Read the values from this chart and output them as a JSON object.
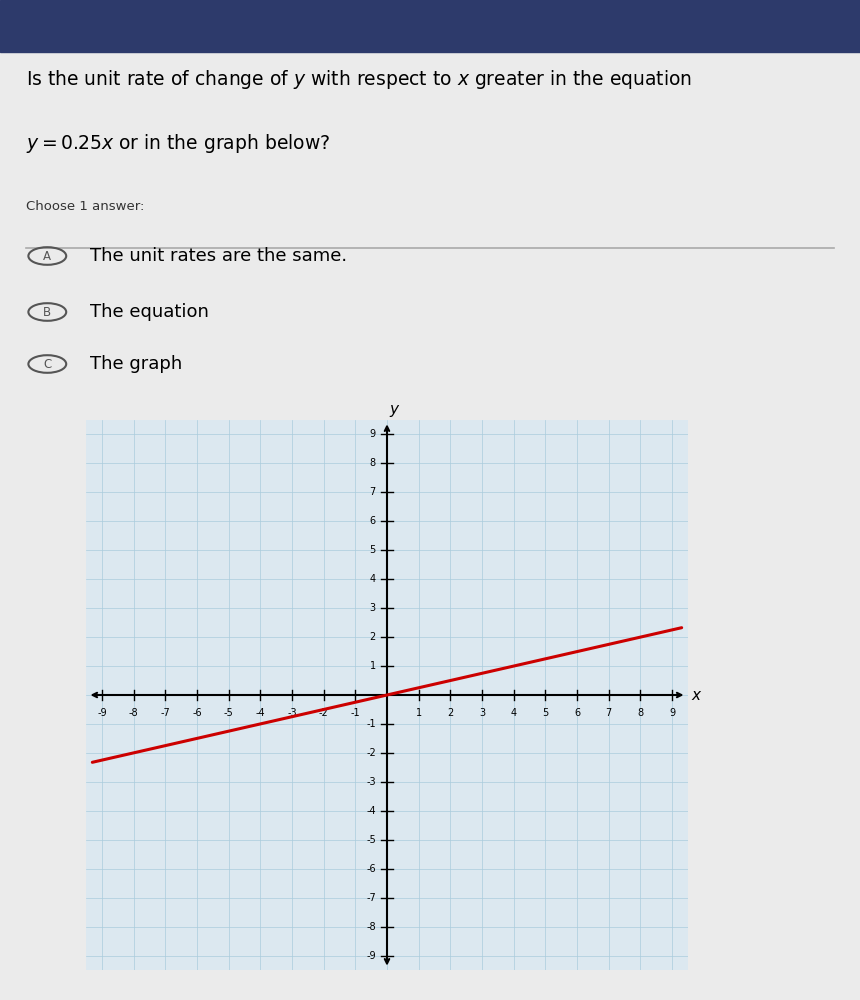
{
  "choose_label": "Choose 1 answer:",
  "options": [
    {
      "letter": "A",
      "text": "The unit rates are the same."
    },
    {
      "letter": "B",
      "text": "The equation"
    },
    {
      "letter": "C",
      "text": "The graph"
    }
  ],
  "background_color": "#ebebeb",
  "graph_bg_color": "#dce8f0",
  "line_color": "#cc0000",
  "line_slope": 0.25,
  "line_intercept": 0,
  "x_range": [
    -9,
    9
  ],
  "y_range": [
    -9,
    9
  ],
  "grid_color": "#aaccdd",
  "header_bg": "#2d3a6b",
  "circle_color": "#555555",
  "separator_color": "#aaaaaa"
}
